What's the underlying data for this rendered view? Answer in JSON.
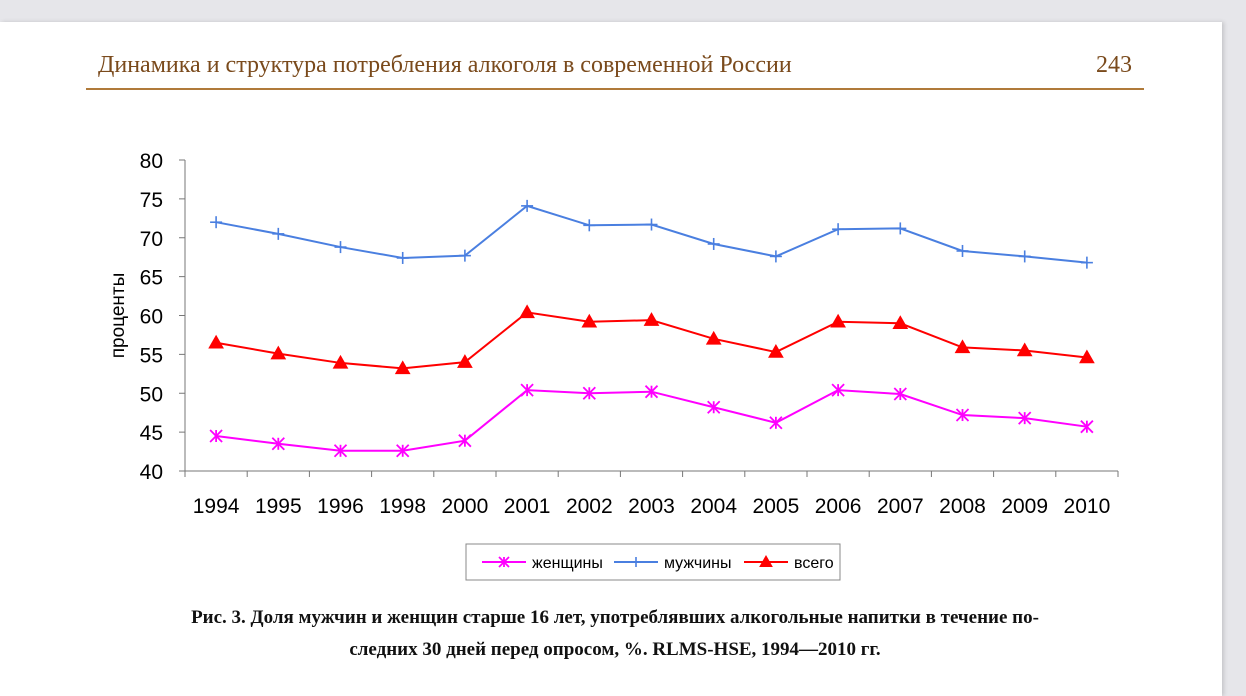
{
  "header": {
    "title": "Динамика и структура потребления алкоголя в современной России",
    "page_number": "243"
  },
  "chart_data": {
    "type": "line",
    "ylabel": "проценты",
    "xlabel": "",
    "ylim": [
      40,
      80
    ],
    "yticks": [
      "80",
      "75",
      "70",
      "65",
      "60",
      "55",
      "50",
      "45",
      "40"
    ],
    "categories": [
      "1994",
      "1995",
      "1996",
      "1998",
      "2000",
      "2001",
      "2002",
      "2003",
      "2004",
      "2005",
      "2006",
      "2007",
      "2008",
      "2009",
      "2010"
    ],
    "grid": false,
    "legend_position": "bottom",
    "series": [
      {
        "name": "женщины",
        "color": "#ff00ff",
        "marker": "asterisk",
        "values": [
          44.5,
          43.5,
          42.6,
          42.6,
          43.9,
          50.4,
          50.0,
          50.2,
          48.2,
          46.2,
          50.4,
          49.9,
          47.2,
          46.8,
          45.7
        ]
      },
      {
        "name": "мужчины",
        "color": "#4a7fe0",
        "marker": "plus",
        "values": [
          72.0,
          70.5,
          68.8,
          67.4,
          67.7,
          74.1,
          71.6,
          71.7,
          69.2,
          67.6,
          71.1,
          71.2,
          68.3,
          67.6,
          66.8
        ]
      },
      {
        "name": "всего",
        "color": "#ff0000",
        "marker": "triangle",
        "values": [
          56.5,
          55.1,
          53.9,
          53.2,
          54.0,
          60.4,
          59.2,
          59.4,
          57.0,
          55.3,
          59.2,
          59.0,
          55.9,
          55.5,
          54.6
        ]
      }
    ]
  },
  "caption": {
    "line1": "Рис. 3. Доля мужчин и женщин старше 16 лет, употреблявших алкогольные напитки в течение по-",
    "line2": "следних 30 дней перед опросом, %. RLMS-HSE, 1994—2010 гг."
  }
}
